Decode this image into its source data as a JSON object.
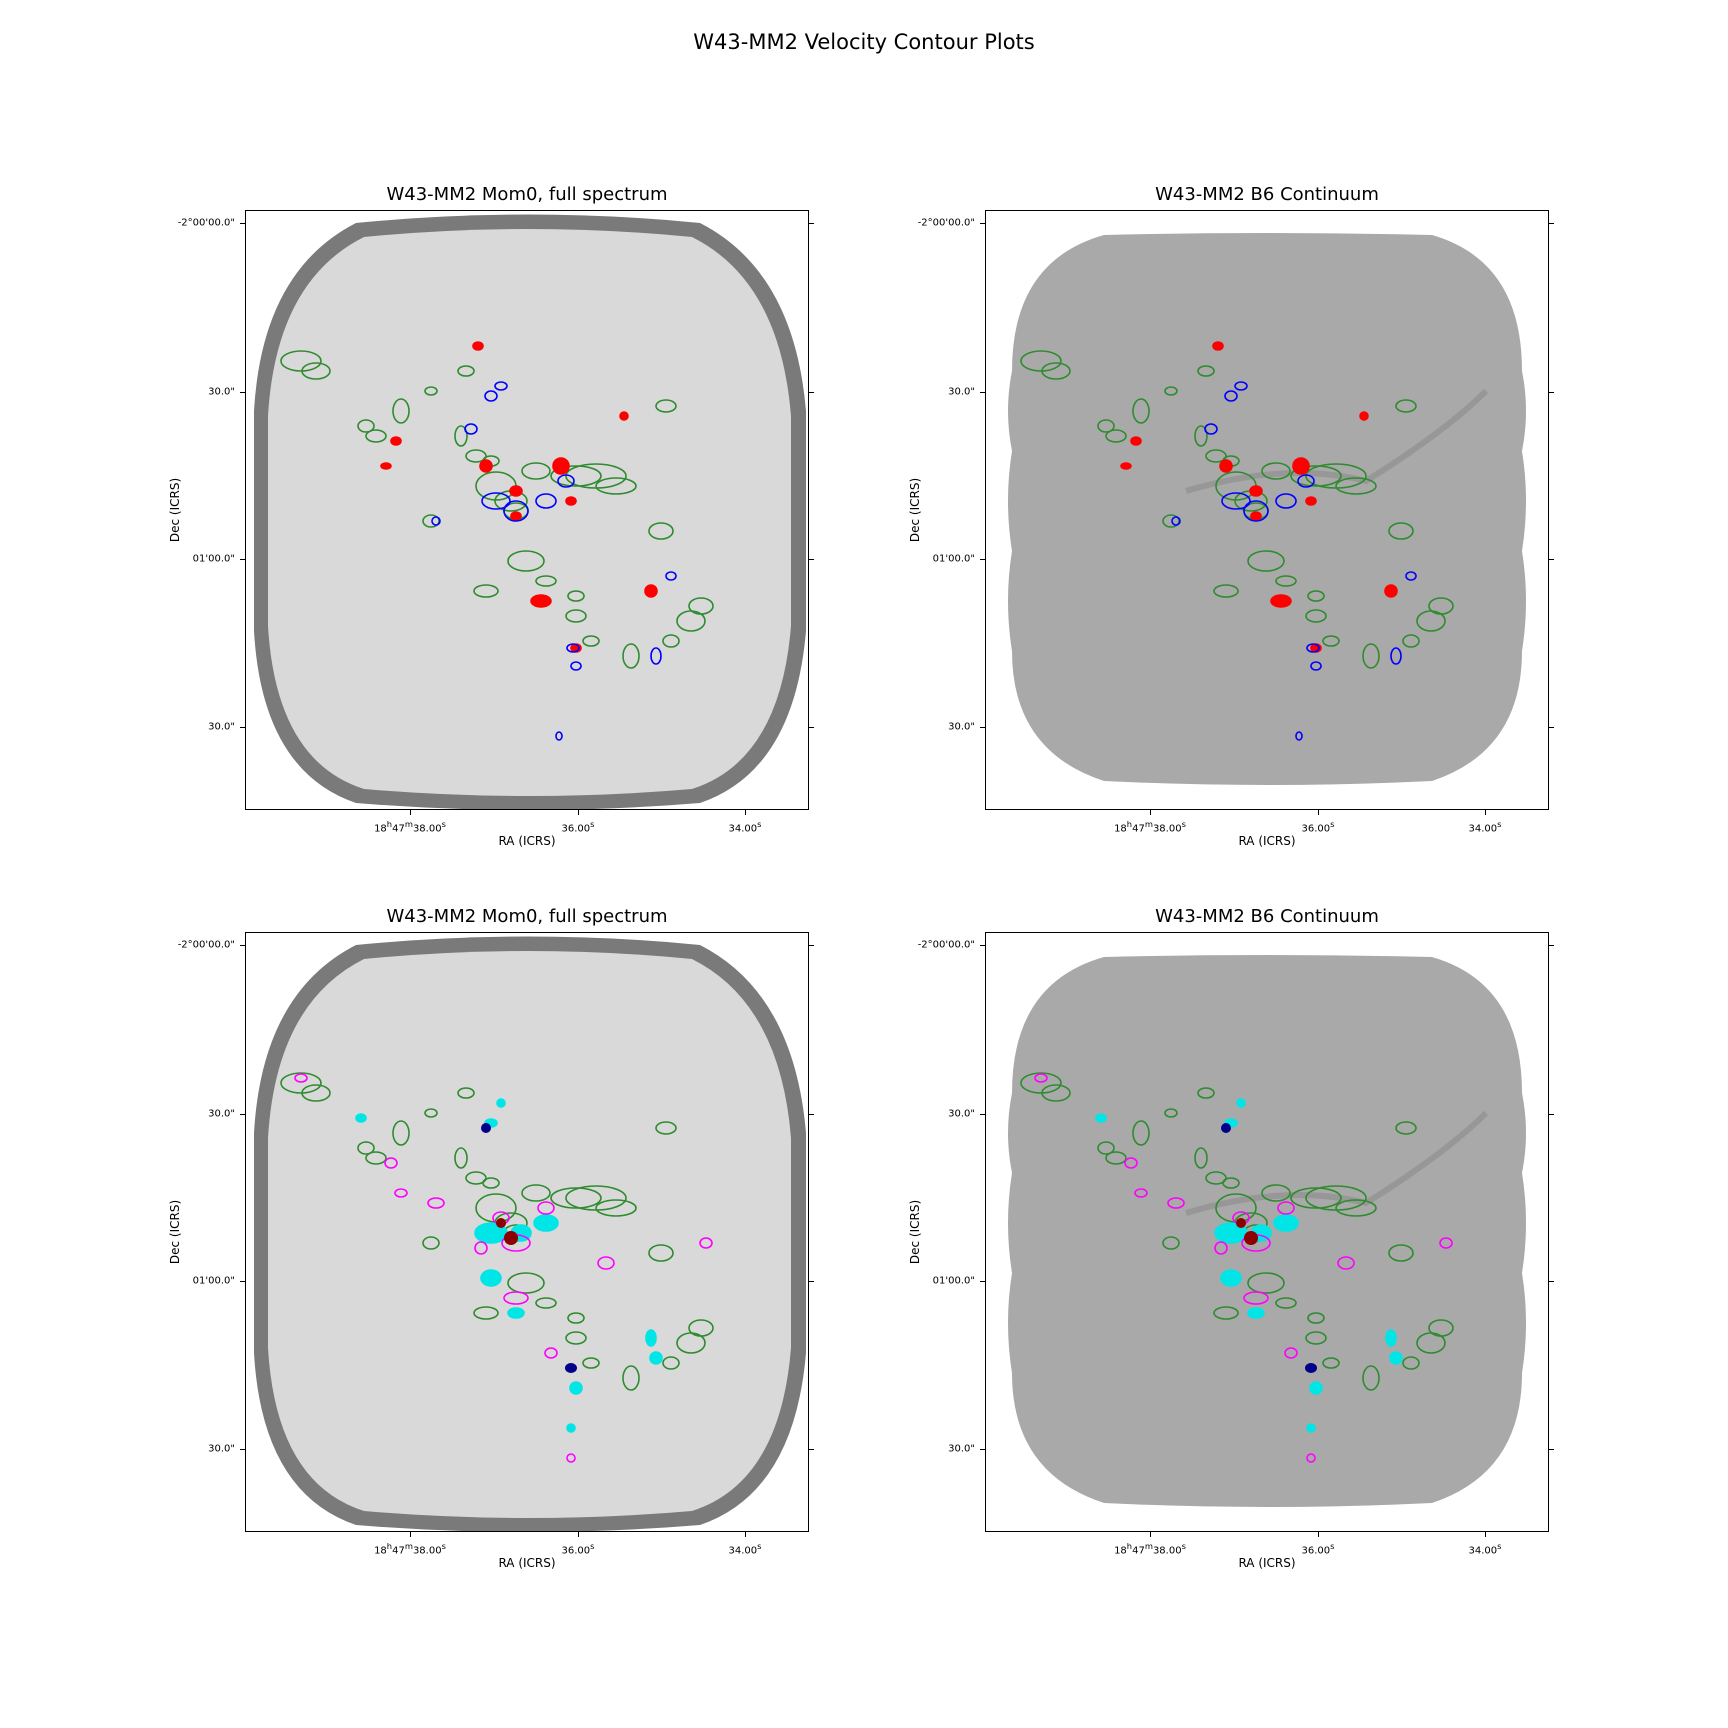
{
  "figure_title": "W43-MM2 Velocity Contour Plots",
  "colors": {
    "green": "#2e8b2e",
    "red": "#ff0000",
    "blue": "#0000ff",
    "cyan": "#00e5e5",
    "magenta": "#ff00ff",
    "darkred": "#8b0000",
    "darkblue": "#00008b"
  },
  "axes": {
    "xlabel": "RA (ICRS)",
    "ylabel": "Dec (ICRS)",
    "xticks": [
      "18h47m38.00s",
      "36.00s",
      "34.00s"
    ],
    "yticks": [
      "-2°00'00.0\"",
      "30.0\"",
      "01'00.0\"",
      "30.0\""
    ]
  },
  "chart_data": [
    {
      "type": "contour",
      "panel": "top-left",
      "title": "W43-MM2 Mom0, full spectrum",
      "background": "mom0",
      "xlabel": "RA (ICRS)",
      "ylabel": "Dec (ICRS)",
      "xticks": [
        "18h47m38.00s",
        "36.00s",
        "34.00s"
      ],
      "yticks": [
        "-2°00'00.0\"",
        "30.0\"",
        "01'00.0\"",
        "30.0\""
      ],
      "contour_colors": [
        "green",
        "red",
        "blue"
      ]
    },
    {
      "type": "contour",
      "panel": "top-right",
      "title": "W43-MM2 B6 Continuum",
      "background": "continuum",
      "xlabel": "RA (ICRS)",
      "ylabel": "Dec (ICRS)",
      "xticks": [
        "18h47m38.00s",
        "36.00s",
        "34.00s"
      ],
      "yticks": [
        "-2°00'00.0\"",
        "30.0\"",
        "01'00.0\"",
        "30.0\""
      ],
      "contour_colors": [
        "green",
        "red",
        "blue"
      ]
    },
    {
      "type": "contour",
      "panel": "bottom-left",
      "title": "W43-MM2 Mom0, full spectrum",
      "background": "mom0",
      "xlabel": "RA (ICRS)",
      "ylabel": "Dec (ICRS)",
      "xticks": [
        "18h47m38.00s",
        "36.00s",
        "34.00s"
      ],
      "yticks": [
        "-2°00'00.0\"",
        "30.0\"",
        "01'00.0\"",
        "30.0\""
      ],
      "contour_colors": [
        "green",
        "cyan",
        "magenta",
        "darkred",
        "darkblue"
      ]
    },
    {
      "type": "contour",
      "panel": "bottom-right",
      "title": "W43-MM2 B6 Continuum",
      "background": "continuum",
      "xlabel": "RA (ICRS)",
      "ylabel": "Dec (ICRS)",
      "xticks": [
        "18h47m38.00s",
        "36.00s",
        "34.00s"
      ],
      "yticks": [
        "-2°00'00.0\"",
        "30.0\"",
        "01'00.0\"",
        "30.0\""
      ],
      "contour_colors": [
        "green",
        "cyan",
        "magenta",
        "darkred",
        "darkblue"
      ]
    }
  ]
}
